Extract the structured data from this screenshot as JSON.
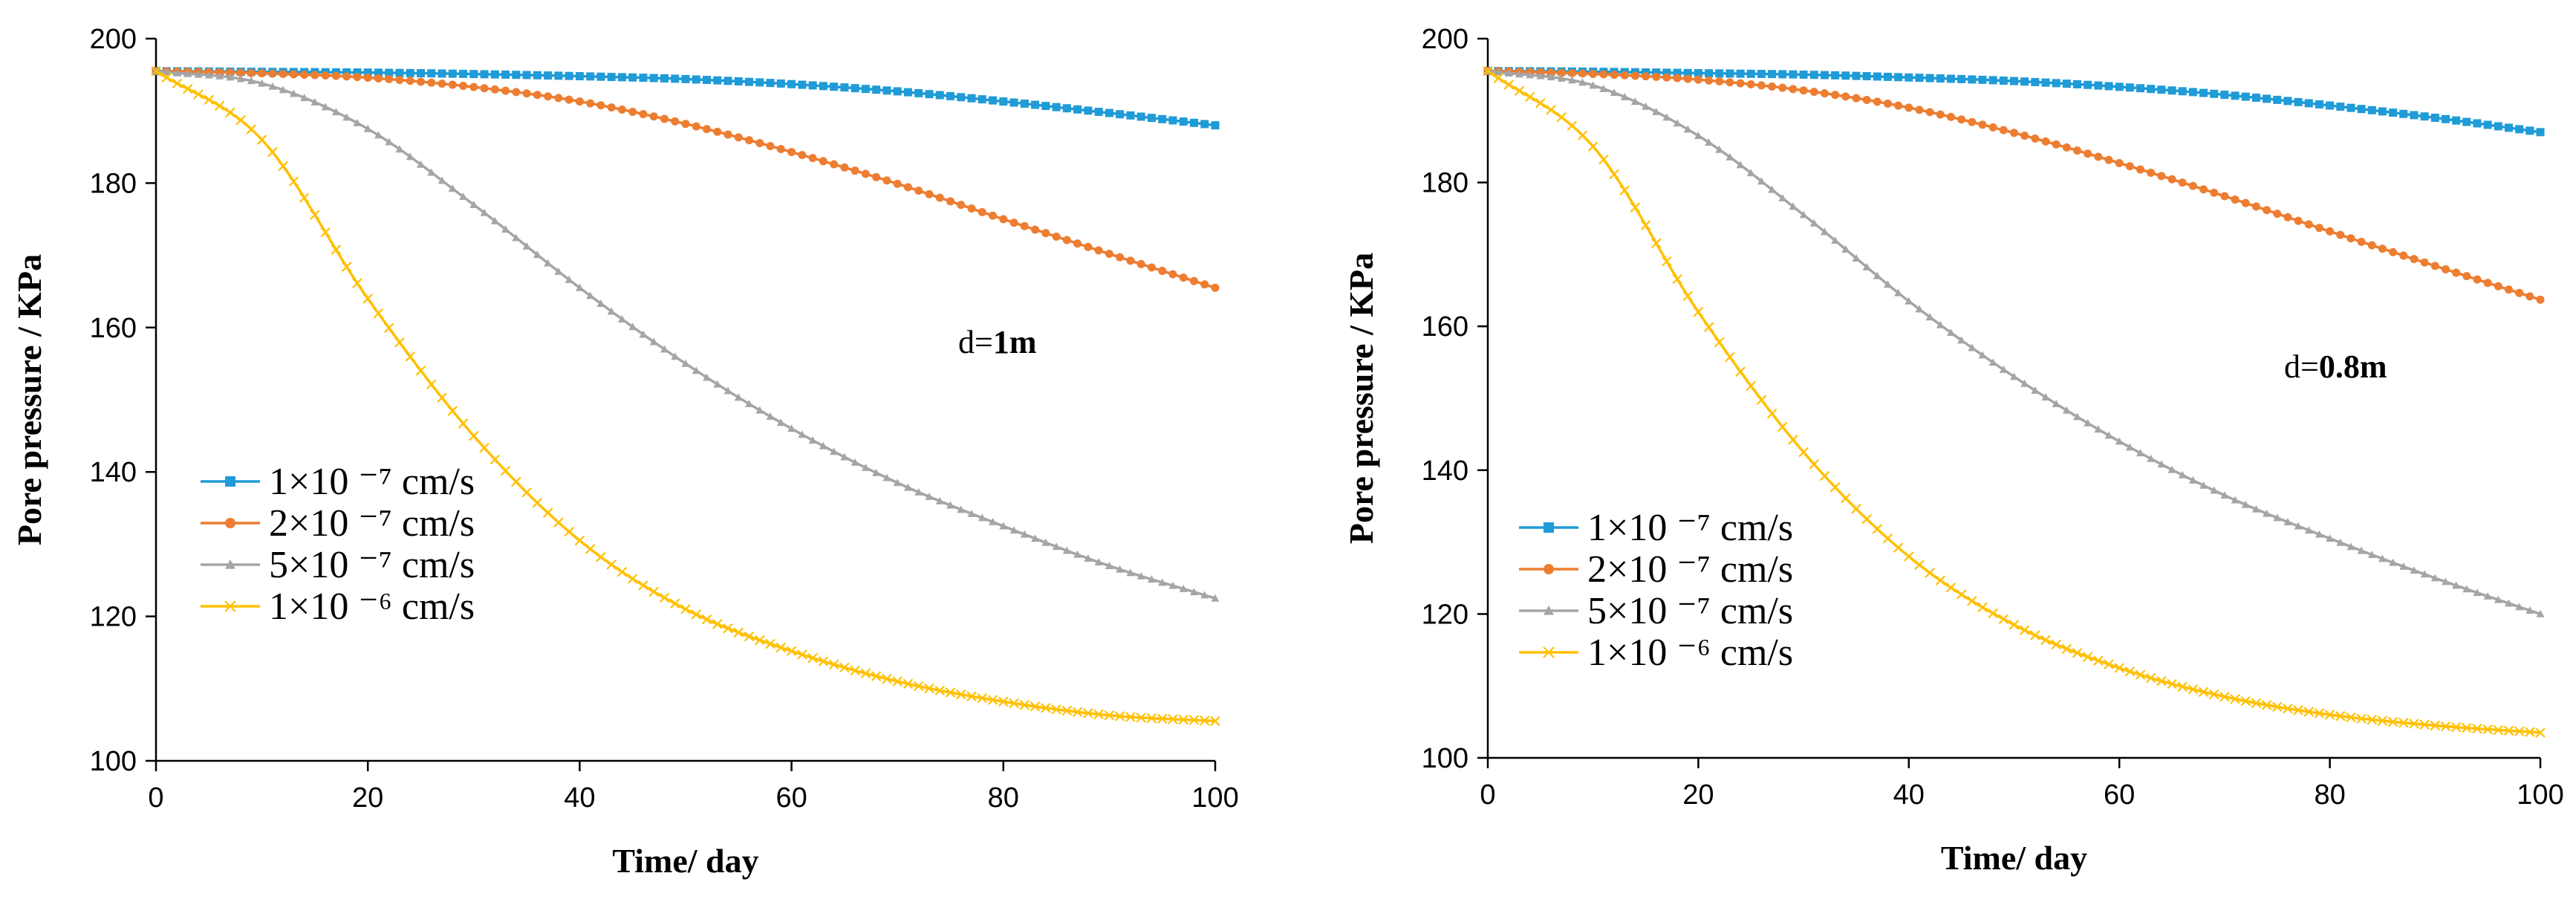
{
  "chart_data": [
    {
      "type": "line",
      "xlabel": "Time/ day",
      "ylabel": "Pore pressure / KPa",
      "xlim": [
        0,
        100
      ],
      "ylim": [
        100,
        200
      ],
      "xticks": [
        "0",
        "20",
        "40",
        "60",
        "80",
        "100"
      ],
      "yticks": [
        "100",
        "120",
        "140",
        "160",
        "180",
        "200"
      ],
      "annotation": {
        "prefix": "d=",
        "value": "1m"
      },
      "x": [
        0,
        10,
        20,
        30,
        40,
        50,
        60,
        70,
        80,
        90,
        100
      ],
      "series": [
        {
          "name": "1×10 ⁻⁷ cm/s",
          "color": "#1F9BD7",
          "marker": "square",
          "values": [
            195.5,
            195.4,
            195.3,
            195.1,
            194.8,
            194.4,
            193.7,
            192.7,
            191.3,
            189.7,
            188.0
          ]
        },
        {
          "name": "2×10 ⁻⁷ cm/s",
          "color": "#ED7D31",
          "marker": "circle",
          "values": [
            195.5,
            195.2,
            194.6,
            193.3,
            191.3,
            188.2,
            184.3,
            179.9,
            175.0,
            170.2,
            165.5
          ]
        },
        {
          "name": "5×10 ⁻⁷ cm/s",
          "color": "#A5A5A5",
          "marker": "triangle",
          "values": [
            195.5,
            193.8,
            187.5,
            177.0,
            165.5,
            155.0,
            146.0,
            138.5,
            132.5,
            127.0,
            122.5
          ]
        },
        {
          "name": "1×10 ⁻⁶ cm/s",
          "color": "#FFC000",
          "marker": "x",
          "values": [
            195.5,
            186.0,
            164.0,
            145.0,
            130.5,
            121.0,
            115.2,
            111.0,
            108.2,
            106.3,
            105.5
          ]
        }
      ]
    },
    {
      "type": "line",
      "xlabel": "Time/ day",
      "ylabel": "Pore pressure / KPa",
      "xlim": [
        0,
        100
      ],
      "ylim": [
        100,
        200
      ],
      "xticks": [
        "0",
        "20",
        "40",
        "60",
        "80",
        "100"
      ],
      "yticks": [
        "100",
        "120",
        "140",
        "160",
        "180",
        "200"
      ],
      "annotation": {
        "prefix": "d=",
        "value": "0.8m"
      },
      "x": [
        0,
        10,
        20,
        30,
        40,
        50,
        60,
        70,
        80,
        90,
        100
      ],
      "series": [
        {
          "name": "1×10 ⁻⁷ cm/s",
          "color": "#1F9BD7",
          "marker": "square",
          "values": [
            195.5,
            195.4,
            195.2,
            195.0,
            194.6,
            194.1,
            193.3,
            192.2,
            190.7,
            189.0,
            187.0
          ]
        },
        {
          "name": "2×10 ⁻⁷ cm/s",
          "color": "#ED7D31",
          "marker": "circle",
          "values": [
            195.5,
            195.1,
            194.3,
            192.8,
            190.4,
            186.9,
            182.7,
            178.1,
            173.2,
            168.4,
            163.7
          ]
        },
        {
          "name": "5×10 ⁻⁷ cm/s",
          "color": "#A5A5A5",
          "marker": "triangle",
          "values": [
            195.5,
            193.5,
            186.5,
            175.5,
            163.5,
            153.0,
            144.0,
            136.5,
            130.5,
            125.0,
            120.0
          ]
        },
        {
          "name": "1×10 ⁻⁶ cm/s",
          "color": "#FFC000",
          "marker": "x",
          "values": [
            195.5,
            185.0,
            162.0,
            142.5,
            128.0,
            118.5,
            112.5,
            108.5,
            106.0,
            104.5,
            103.5
          ]
        }
      ]
    }
  ]
}
